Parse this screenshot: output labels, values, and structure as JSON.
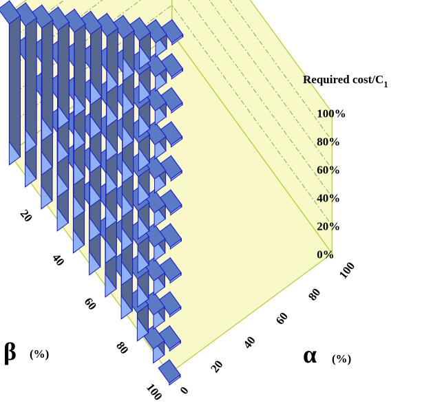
{
  "colors": {
    "panel_fill": "#f8f8c8",
    "panel_edge": "#b8cc2a",
    "bar_top": "#5a7ac4",
    "bar_left": "#8eb2f4",
    "bar_right": "#56688e",
    "bar_edge": "#1616d6"
  },
  "chart_data": {
    "type": "bar3d",
    "title": "",
    "z_axis_label": "Required cost/C",
    "z_axis_label_subscript": "1",
    "x_axis": {
      "symbol": "β",
      "unit": "(%)",
      "ticks": [
        "0",
        "20",
        "40",
        "60",
        "80",
        "100"
      ]
    },
    "y_axis": {
      "symbol": "α",
      "unit": "(%)",
      "ticks": [
        "0",
        "20",
        "40",
        "60",
        "80",
        "100"
      ]
    },
    "z_ticks": [
      "0%",
      "20%",
      "40%",
      "60%",
      "80%",
      "100%"
    ],
    "zlim": [
      0,
      100
    ],
    "grid": true,
    "beta_values": [
      0,
      10,
      20,
      30,
      40,
      50,
      60,
      70,
      80,
      90,
      100
    ],
    "alpha_values": [
      0,
      10,
      20,
      30,
      40,
      50,
      60,
      70,
      80,
      90,
      100
    ],
    "z_rule": "Required cost/C1 = max(0, 100% - alpha - beta)",
    "bars": [
      {
        "beta": 0,
        "alpha": 0,
        "value": 100
      },
      {
        "beta": 0,
        "alpha": 10,
        "value": 90
      },
      {
        "beta": 0,
        "alpha": 20,
        "value": 80
      },
      {
        "beta": 0,
        "alpha": 30,
        "value": 70
      },
      {
        "beta": 0,
        "alpha": 40,
        "value": 60
      },
      {
        "beta": 0,
        "alpha": 50,
        "value": 50
      },
      {
        "beta": 0,
        "alpha": 60,
        "value": 40
      },
      {
        "beta": 0,
        "alpha": 70,
        "value": 30
      },
      {
        "beta": 0,
        "alpha": 80,
        "value": 20
      },
      {
        "beta": 0,
        "alpha": 90,
        "value": 10
      },
      {
        "beta": 0,
        "alpha": 100,
        "value": 0
      },
      {
        "beta": 10,
        "alpha": 0,
        "value": 90
      },
      {
        "beta": 10,
        "alpha": 10,
        "value": 80
      },
      {
        "beta": 10,
        "alpha": 20,
        "value": 70
      },
      {
        "beta": 10,
        "alpha": 30,
        "value": 60
      },
      {
        "beta": 10,
        "alpha": 40,
        "value": 50
      },
      {
        "beta": 10,
        "alpha": 50,
        "value": 40
      },
      {
        "beta": 10,
        "alpha": 60,
        "value": 30
      },
      {
        "beta": 10,
        "alpha": 70,
        "value": 20
      },
      {
        "beta": 10,
        "alpha": 80,
        "value": 10
      },
      {
        "beta": 10,
        "alpha": 90,
        "value": 0
      },
      {
        "beta": 20,
        "alpha": 0,
        "value": 80
      },
      {
        "beta": 20,
        "alpha": 10,
        "value": 70
      },
      {
        "beta": 20,
        "alpha": 20,
        "value": 60
      },
      {
        "beta": 20,
        "alpha": 30,
        "value": 50
      },
      {
        "beta": 20,
        "alpha": 40,
        "value": 40
      },
      {
        "beta": 20,
        "alpha": 50,
        "value": 30
      },
      {
        "beta": 20,
        "alpha": 60,
        "value": 20
      },
      {
        "beta": 20,
        "alpha": 70,
        "value": 10
      },
      {
        "beta": 20,
        "alpha": 80,
        "value": 0
      },
      {
        "beta": 30,
        "alpha": 0,
        "value": 70
      },
      {
        "beta": 30,
        "alpha": 10,
        "value": 60
      },
      {
        "beta": 30,
        "alpha": 20,
        "value": 50
      },
      {
        "beta": 30,
        "alpha": 30,
        "value": 40
      },
      {
        "beta": 30,
        "alpha": 40,
        "value": 30
      },
      {
        "beta": 30,
        "alpha": 50,
        "value": 20
      },
      {
        "beta": 30,
        "alpha": 60,
        "value": 10
      },
      {
        "beta": 30,
        "alpha": 70,
        "value": 0
      },
      {
        "beta": 40,
        "alpha": 0,
        "value": 60
      },
      {
        "beta": 40,
        "alpha": 10,
        "value": 50
      },
      {
        "beta": 40,
        "alpha": 20,
        "value": 40
      },
      {
        "beta": 40,
        "alpha": 30,
        "value": 30
      },
      {
        "beta": 40,
        "alpha": 40,
        "value": 20
      },
      {
        "beta": 40,
        "alpha": 50,
        "value": 10
      },
      {
        "beta": 40,
        "alpha": 60,
        "value": 0
      },
      {
        "beta": 50,
        "alpha": 0,
        "value": 50
      },
      {
        "beta": 50,
        "alpha": 10,
        "value": 40
      },
      {
        "beta": 50,
        "alpha": 20,
        "value": 30
      },
      {
        "beta": 50,
        "alpha": 30,
        "value": 20
      },
      {
        "beta": 50,
        "alpha": 40,
        "value": 10
      },
      {
        "beta": 50,
        "alpha": 50,
        "value": 0
      },
      {
        "beta": 60,
        "alpha": 0,
        "value": 40
      },
      {
        "beta": 60,
        "alpha": 10,
        "value": 30
      },
      {
        "beta": 60,
        "alpha": 20,
        "value": 20
      },
      {
        "beta": 60,
        "alpha": 30,
        "value": 10
      },
      {
        "beta": 60,
        "alpha": 40,
        "value": 0
      },
      {
        "beta": 70,
        "alpha": 0,
        "value": 30
      },
      {
        "beta": 70,
        "alpha": 10,
        "value": 20
      },
      {
        "beta": 70,
        "alpha": 20,
        "value": 10
      },
      {
        "beta": 70,
        "alpha": 30,
        "value": 0
      },
      {
        "beta": 80,
        "alpha": 0,
        "value": 20
      },
      {
        "beta": 80,
        "alpha": 10,
        "value": 10
      },
      {
        "beta": 80,
        "alpha": 20,
        "value": 0
      },
      {
        "beta": 90,
        "alpha": 0,
        "value": 10
      },
      {
        "beta": 90,
        "alpha": 10,
        "value": 0
      },
      {
        "beta": 100,
        "alpha": 0,
        "value": 0
      }
    ]
  }
}
